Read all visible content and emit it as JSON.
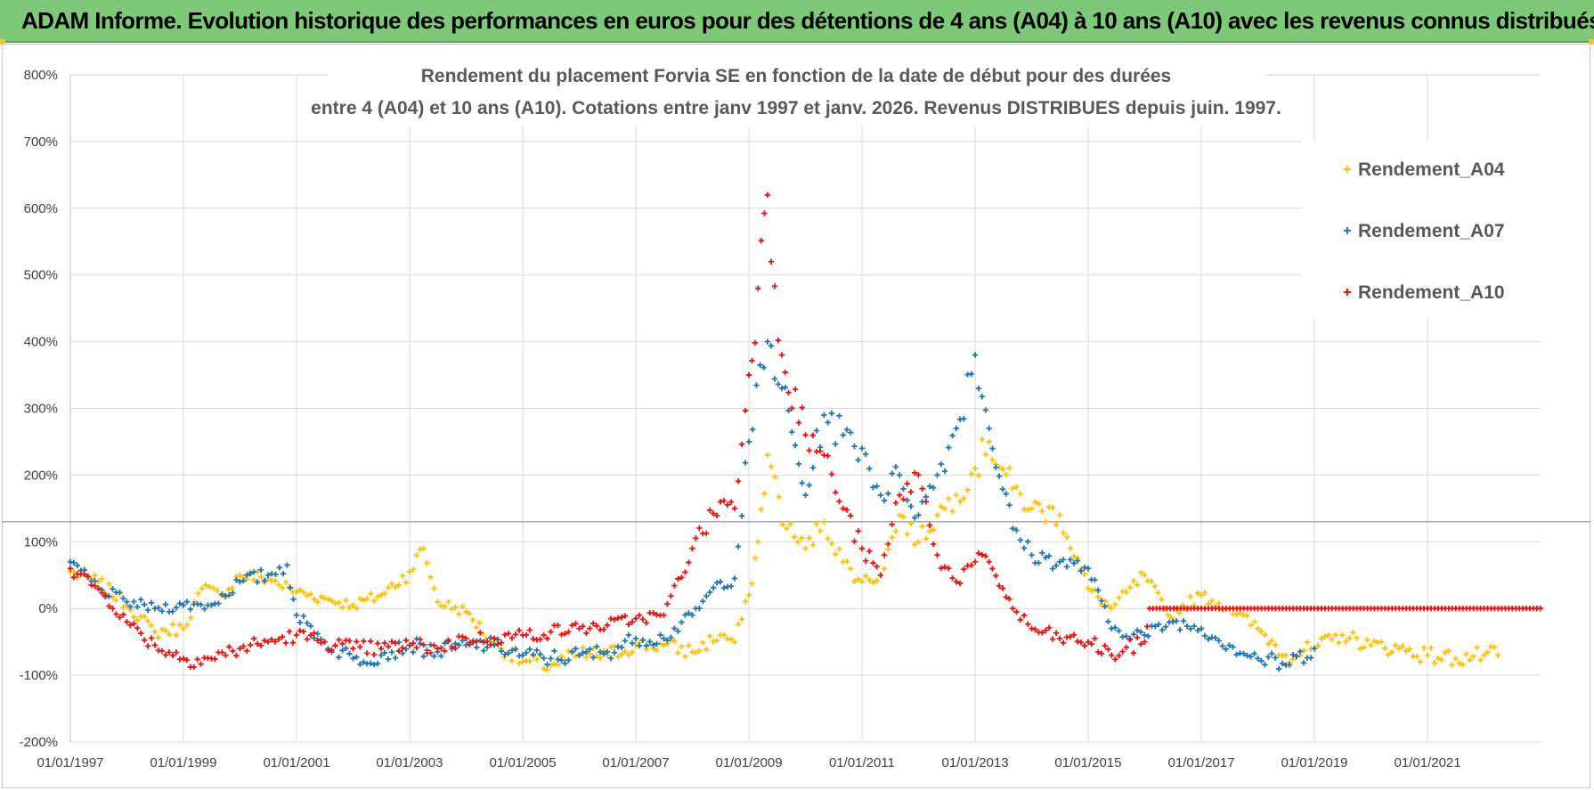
{
  "banner": {
    "title": "ADAM Informe. Evolution historique des performances en euros pour des détentions de 4 ans (A04) à 10 ans (A10) avec les revenus connus distribués"
  },
  "colors": {
    "banner_bg": "#7ec87a",
    "A04": "#ffc000",
    "A07": "#1f77b4",
    "A10": "#ee1111"
  },
  "chart_data": {
    "type": "scatter",
    "title_lines": [
      "Rendement du placement Forvia SE en fonction de la date de début pour des durées",
      "entre 4 (A04) et 10 ans (A10).  Cotations entre janv 1997 et janv. 2026. Revenus DISTRIBUES depuis juin. 1997."
    ],
    "xlabel": "",
    "ylabel": "",
    "x_range": [
      "1997-01-01",
      "2023-01-01"
    ],
    "x_ticks": [
      "01/01/1997",
      "01/01/1999",
      "01/01/2001",
      "01/01/2003",
      "01/01/2005",
      "01/01/2007",
      "01/01/2009",
      "01/01/2011",
      "01/01/2013",
      "01/01/2015",
      "01/01/2017",
      "01/01/2019",
      "01/01/2021"
    ],
    "ylim": [
      -200,
      800
    ],
    "y_ticks": [
      "-200%",
      "-100%",
      "0%",
      "100%",
      "200%",
      "300%",
      "400%",
      "500%",
      "600%",
      "700%",
      "800%"
    ],
    "y_unit": "%",
    "grid": true,
    "reference_line_y": 130,
    "legend_position": "right",
    "marker": "+",
    "series": [
      {
        "name": "Rendement_A04",
        "color": "#ffc000",
        "points": [
          [
            "1997-01-01",
            55
          ],
          [
            "1997-07-01",
            40
          ],
          [
            "1998-01-01",
            5
          ],
          [
            "1998-07-01",
            -35
          ],
          [
            "1999-01-01",
            -30
          ],
          [
            "1999-05-01",
            30
          ],
          [
            "1999-09-01",
            20
          ],
          [
            "2000-01-01",
            50
          ],
          [
            "2000-07-01",
            45
          ],
          [
            "2001-01-01",
            25
          ],
          [
            "2001-07-01",
            15
          ],
          [
            "2002-01-01",
            5
          ],
          [
            "2002-07-01",
            20
          ],
          [
            "2003-01-01",
            55
          ],
          [
            "2003-04-01",
            90
          ],
          [
            "2003-07-01",
            10
          ],
          [
            "2004-01-01",
            -5
          ],
          [
            "2004-06-01",
            -45
          ],
          [
            "2005-01-01",
            -80
          ],
          [
            "2005-07-01",
            -85
          ],
          [
            "2006-01-01",
            -70
          ],
          [
            "2006-07-01",
            -70
          ],
          [
            "2007-01-01",
            -55
          ],
          [
            "2007-07-01",
            -55
          ],
          [
            "2008-01-01",
            -65
          ],
          [
            "2008-07-01",
            -40
          ],
          [
            "2008-10-01",
            -50
          ],
          [
            "2009-01-01",
            20
          ],
          [
            "2009-03-01",
            100
          ],
          [
            "2009-05-01",
            230
          ],
          [
            "2009-09-01",
            120
          ],
          [
            "2010-01-01",
            90
          ],
          [
            "2010-05-01",
            130
          ],
          [
            "2010-09-01",
            70
          ],
          [
            "2011-01-01",
            40
          ],
          [
            "2011-05-01",
            50
          ],
          [
            "2011-09-01",
            140
          ],
          [
            "2012-01-01",
            100
          ],
          [
            "2012-05-01",
            140
          ],
          [
            "2012-09-01",
            170
          ],
          [
            "2013-01-01",
            210
          ],
          [
            "2013-04-01",
            250
          ],
          [
            "2013-09-01",
            180
          ],
          [
            "2014-01-01",
            150
          ],
          [
            "2014-07-01",
            140
          ],
          [
            "2015-01-01",
            30
          ],
          [
            "2015-06-01",
            0
          ],
          [
            "2016-01-01",
            50
          ],
          [
            "2016-06-01",
            -10
          ],
          [
            "2017-01-01",
            20
          ],
          [
            "2017-07-01",
            0
          ],
          [
            "2018-01-01",
            -30
          ],
          [
            "2018-07-01",
            -70
          ],
          [
            "2019-01-01",
            -60
          ],
          [
            "2019-07-01",
            -40
          ],
          [
            "2020-01-01",
            -55
          ],
          [
            "2020-07-01",
            -60
          ],
          [
            "2021-01-01",
            -70
          ],
          [
            "2021-07-01",
            -75
          ],
          [
            "2022-01-01",
            -70
          ],
          [
            "2022-04-01",
            -70
          ]
        ]
      },
      {
        "name": "Rendement_A07",
        "color": "#1f77b4",
        "points": [
          [
            "1997-01-01",
            70
          ],
          [
            "1997-07-01",
            30
          ],
          [
            "1998-01-01",
            10
          ],
          [
            "1998-07-01",
            0
          ],
          [
            "1999-01-01",
            5
          ],
          [
            "1999-07-01",
            5
          ],
          [
            "2000-01-01",
            40
          ],
          [
            "2000-07-01",
            50
          ],
          [
            "2000-11-01",
            65
          ],
          [
            "2001-01-01",
            -10
          ],
          [
            "2001-07-01",
            -50
          ],
          [
            "2002-01-01",
            -75
          ],
          [
            "2002-07-01",
            -70
          ],
          [
            "2003-01-01",
            -55
          ],
          [
            "2003-07-01",
            -65
          ],
          [
            "2004-01-01",
            -55
          ],
          [
            "2004-07-01",
            -55
          ],
          [
            "2005-01-01",
            -70
          ],
          [
            "2005-07-01",
            -75
          ],
          [
            "2006-01-01",
            -70
          ],
          [
            "2006-07-01",
            -65
          ],
          [
            "2007-01-01",
            -45
          ],
          [
            "2007-07-01",
            -45
          ],
          [
            "2008-01-01",
            -10
          ],
          [
            "2008-07-01",
            40
          ],
          [
            "2008-10-01",
            45
          ],
          [
            "2009-01-01",
            250
          ],
          [
            "2009-05-01",
            400
          ],
          [
            "2009-08-01",
            330
          ],
          [
            "2010-01-01",
            170
          ],
          [
            "2010-05-01",
            290
          ],
          [
            "2010-09-01",
            260
          ],
          [
            "2011-01-01",
            240
          ],
          [
            "2011-05-01",
            170
          ],
          [
            "2011-09-01",
            200
          ],
          [
            "2012-01-01",
            140
          ],
          [
            "2012-05-01",
            200
          ],
          [
            "2012-09-01",
            270
          ],
          [
            "2013-01-01",
            380
          ],
          [
            "2013-04-01",
            270
          ],
          [
            "2013-09-01",
            120
          ],
          [
            "2014-01-01",
            80
          ],
          [
            "2014-07-01",
            70
          ],
          [
            "2015-01-01",
            60
          ],
          [
            "2015-06-01",
            -30
          ],
          [
            "2016-01-01",
            -40
          ],
          [
            "2016-07-01",
            -20
          ],
          [
            "2017-01-01",
            -30
          ],
          [
            "2017-07-01",
            -55
          ],
          [
            "2018-01-01",
            -75
          ],
          [
            "2018-07-01",
            -85
          ],
          [
            "2019-01-01",
            -60
          ]
        ]
      },
      {
        "name": "Rendement_A10",
        "color": "#ee1111",
        "points": [
          [
            "1997-01-01",
            60
          ],
          [
            "1997-07-01",
            30
          ],
          [
            "1998-01-01",
            -20
          ],
          [
            "1998-07-01",
            -55
          ],
          [
            "1999-01-01",
            -75
          ],
          [
            "1999-07-01",
            -75
          ],
          [
            "2000-01-01",
            -60
          ],
          [
            "2000-07-01",
            -50
          ],
          [
            "2001-01-01",
            -40
          ],
          [
            "2001-07-01",
            -50
          ],
          [
            "2002-01-01",
            -60
          ],
          [
            "2002-07-01",
            -60
          ],
          [
            "2003-01-01",
            -55
          ],
          [
            "2003-07-01",
            -60
          ],
          [
            "2004-01-01",
            -45
          ],
          [
            "2004-07-01",
            -45
          ],
          [
            "2005-01-01",
            -40
          ],
          [
            "2005-07-01",
            -35
          ],
          [
            "2006-01-01",
            -30
          ],
          [
            "2006-07-01",
            -25
          ],
          [
            "2007-01-01",
            -15
          ],
          [
            "2007-07-01",
            -10
          ],
          [
            "2008-01-01",
            90
          ],
          [
            "2008-07-01",
            160
          ],
          [
            "2008-10-01",
            150
          ],
          [
            "2009-01-01",
            350
          ],
          [
            "2009-03-01",
            480
          ],
          [
            "2009-05-01",
            620
          ],
          [
            "2009-08-01",
            380
          ],
          [
            "2010-01-01",
            260
          ],
          [
            "2010-05-01",
            230
          ],
          [
            "2010-09-01",
            150
          ],
          [
            "2011-01-01",
            90
          ],
          [
            "2011-05-01",
            50
          ],
          [
            "2011-09-01",
            170
          ],
          [
            "2012-01-01",
            200
          ],
          [
            "2012-05-01",
            80
          ],
          [
            "2012-09-01",
            40
          ],
          [
            "2013-01-01",
            70
          ],
          [
            "2013-04-01",
            70
          ],
          [
            "2013-09-01",
            0
          ],
          [
            "2014-01-01",
            -30
          ],
          [
            "2014-07-01",
            -45
          ],
          [
            "2015-01-01",
            -50
          ],
          [
            "2015-06-01",
            -70
          ],
          [
            "2016-01-01",
            -50
          ],
          [
            "2016-02-01",
            0
          ],
          [
            "2017-01-01",
            0
          ],
          [
            "2018-01-01",
            0
          ],
          [
            "2019-01-01",
            0
          ],
          [
            "2020-01-01",
            0
          ],
          [
            "2021-01-01",
            0
          ],
          [
            "2022-01-01",
            0
          ],
          [
            "2022-12-31",
            0
          ]
        ]
      }
    ]
  }
}
